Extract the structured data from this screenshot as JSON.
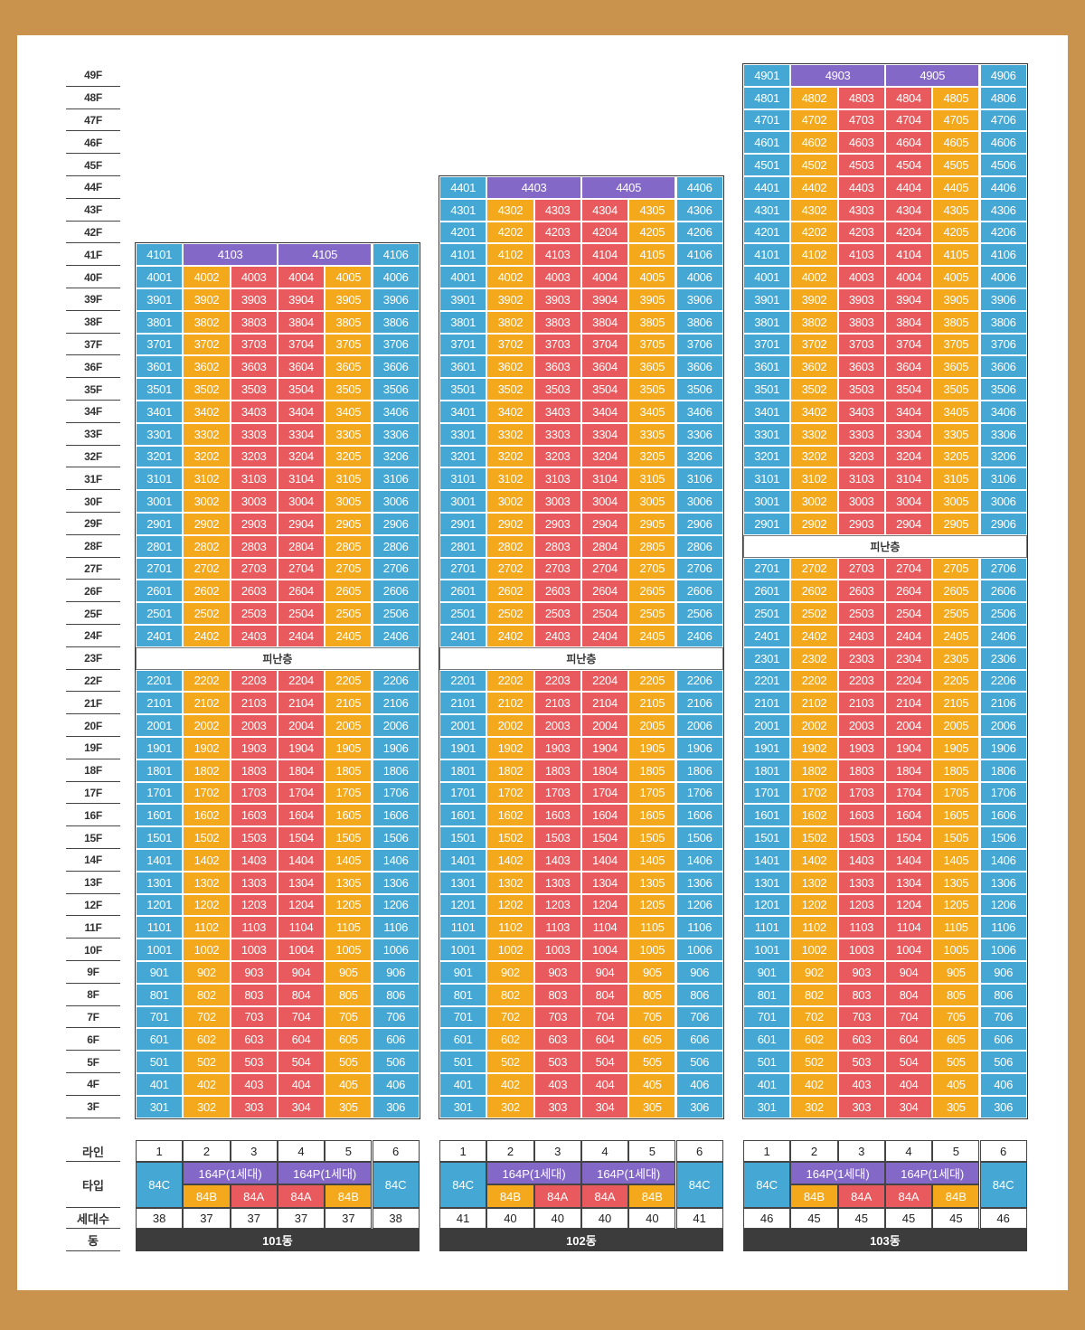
{
  "colors": {
    "blue": "#45a8d4",
    "orange": "#f4a81c",
    "red": "#e85a5e",
    "purple": "#8468c8",
    "frame": "#c9934e",
    "label_bar": "#3c3c3c"
  },
  "floor_label_suffix": "F",
  "floors_range": [
    3,
    49
  ],
  "refuge_label": "피난층",
  "line_colors": [
    "blue",
    "orange",
    "red",
    "red",
    "orange",
    "blue"
  ],
  "legend_labels": {
    "line": "라인",
    "type": "타입",
    "households": "세대수",
    "building": "동"
  },
  "buildings": [
    {
      "name": "101동",
      "top_floor": 41,
      "refuge_floor": 23,
      "penthouse_units": [
        "4101",
        "4103",
        "4105",
        "4106"
      ],
      "lines": [
        "1",
        "2",
        "3",
        "4",
        "5",
        "6"
      ],
      "types": {
        "side": "84C",
        "penthouse": "164P(1세대)",
        "inner": [
          "84B",
          "84A",
          "84A",
          "84B"
        ]
      },
      "households": [
        "38",
        "37",
        "37",
        "37",
        "37",
        "38"
      ]
    },
    {
      "name": "102동",
      "top_floor": 44,
      "refuge_floor": 23,
      "penthouse_units": [
        "4401",
        "4403",
        "4405",
        "4406"
      ],
      "lines": [
        "1",
        "2",
        "3",
        "4",
        "5",
        "6"
      ],
      "types": {
        "side": "84C",
        "penthouse": "164P(1세대)",
        "inner": [
          "84B",
          "84A",
          "84A",
          "84B"
        ]
      },
      "households": [
        "41",
        "40",
        "40",
        "40",
        "40",
        "41"
      ]
    },
    {
      "name": "103동",
      "top_floor": 49,
      "refuge_floor": 28,
      "penthouse_units": [
        "4901",
        "4903",
        "4905",
        "4906"
      ],
      "lines": [
        "1",
        "2",
        "3",
        "4",
        "5",
        "6"
      ],
      "types": {
        "side": "84C",
        "penthouse": "164P(1세대)",
        "inner": [
          "84B",
          "84A",
          "84A",
          "84B"
        ]
      },
      "households": [
        "46",
        "45",
        "45",
        "45",
        "45",
        "46"
      ]
    }
  ]
}
